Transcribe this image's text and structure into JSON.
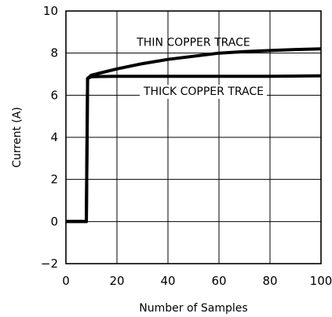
{
  "chart_data": {
    "type": "line",
    "title": "",
    "xlabel": "Number of Samples",
    "ylabel": "Current (A)",
    "xlim": [
      0,
      100
    ],
    "ylim": [
      -2,
      10
    ],
    "x_ticks": [
      0,
      20,
      40,
      60,
      80,
      100
    ],
    "y_ticks": [
      -2,
      0,
      2,
      4,
      6,
      8,
      10
    ],
    "grid": true,
    "legend": "none",
    "series": [
      {
        "name": "THIN COPPER TRACE",
        "color": "#000000",
        "points": [
          [
            0,
            0
          ],
          [
            8,
            0
          ],
          [
            8.5,
            6.8
          ],
          [
            10,
            6.95
          ],
          [
            20,
            7.25
          ],
          [
            30,
            7.5
          ],
          [
            40,
            7.7
          ],
          [
            50,
            7.85
          ],
          [
            60,
            8.0
          ],
          [
            70,
            8.07
          ],
          [
            80,
            8.12
          ],
          [
            90,
            8.17
          ],
          [
            100,
            8.2
          ]
        ]
      },
      {
        "name": "THICK COPPER TRACE",
        "color": "#000000",
        "points": [
          [
            0,
            0
          ],
          [
            8,
            0
          ],
          [
            8.5,
            6.8
          ],
          [
            10,
            6.88
          ],
          [
            20,
            6.9
          ],
          [
            40,
            6.9
          ],
          [
            60,
            6.9
          ],
          [
            80,
            6.9
          ],
          [
            100,
            6.92
          ]
        ]
      }
    ]
  }
}
